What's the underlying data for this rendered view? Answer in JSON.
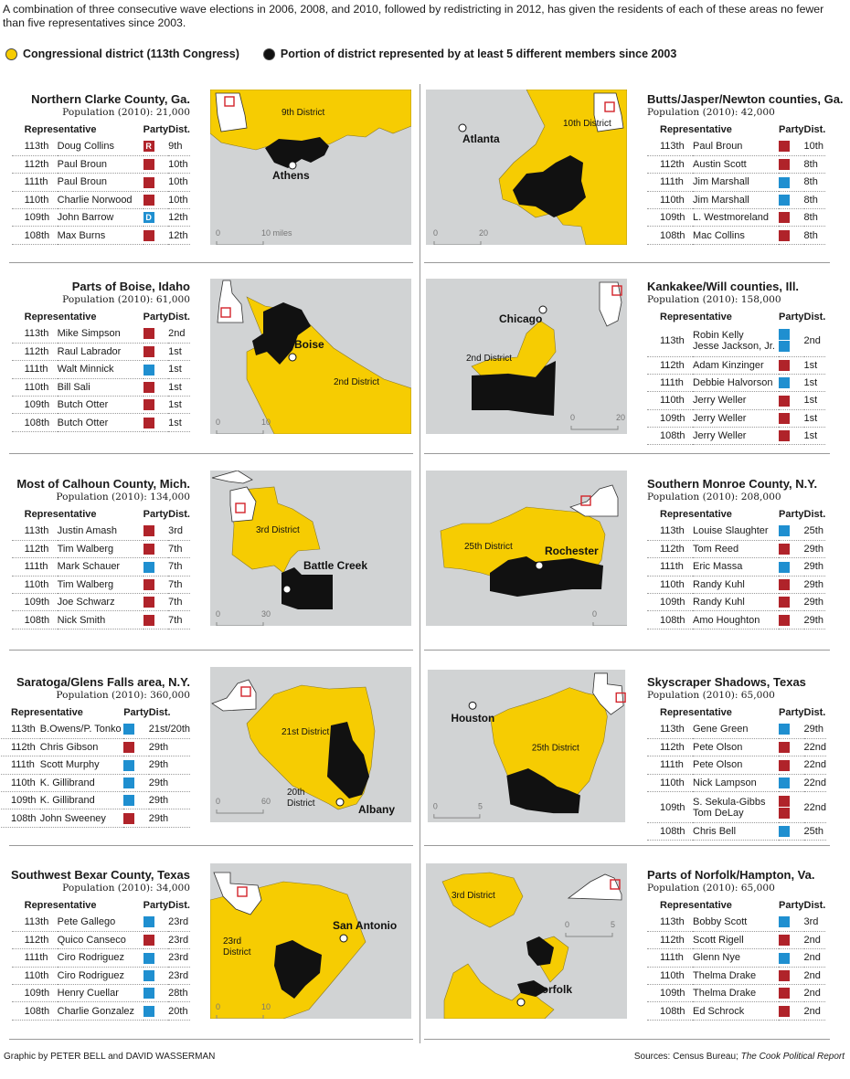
{
  "intro": "A combination of three consecutive wave elections in 2006, 2008, and 2010, followed by redistricting in 2012, has given the residents of each of these areas no fewer than five representatives since 2003.",
  "legend": {
    "district_label": "Congressional district (113th Congress)",
    "portion_label": "Portion of district represented by at least 5 different members since 2003",
    "district_color": "#f6cc02",
    "portion_color": "#111111"
  },
  "colors": {
    "republican": "#b0232a",
    "democrat": "#1f8fd0",
    "land": "#d1d3d4",
    "water": "#ffffff"
  },
  "table_headers": {
    "rep": "Representative",
    "party": "Party",
    "dist": "Dist."
  },
  "regions": [
    {
      "title": "Northern Clarke County, Ga.",
      "population": "Population (2010): 21,000",
      "rows": [
        {
          "congress": "113th",
          "name": "Doug Collins",
          "parties": [
            "R"
          ],
          "label": "R",
          "district": "9th"
        },
        {
          "congress": "112th",
          "name": "Paul Broun",
          "parties": [
            "R"
          ],
          "label": "",
          "district": "10th"
        },
        {
          "congress": "111th",
          "name": "Paul Broun",
          "parties": [
            "R"
          ],
          "label": "",
          "district": "10th"
        },
        {
          "congress": "110th",
          "name": "Charlie Norwood",
          "parties": [
            "R"
          ],
          "label": "",
          "district": "10th"
        },
        {
          "congress": "109th",
          "name": "John Barrow",
          "parties": [
            "D"
          ],
          "label": "D",
          "district": "12th"
        },
        {
          "congress": "108th",
          "name": "Max Burns",
          "parties": [
            "R"
          ],
          "label": "",
          "district": "12th"
        }
      ],
      "map": {
        "district": "9th District",
        "city": "Athens",
        "scale": [
          "0",
          "10 miles"
        ]
      }
    },
    {
      "title": "Butts/Jasper/Newton counties, Ga.",
      "population": "Population (2010): 42,000",
      "rows": [
        {
          "congress": "113th",
          "name": "Paul Broun",
          "parties": [
            "R"
          ],
          "label": "",
          "district": "10th"
        },
        {
          "congress": "112th",
          "name": "Austin Scott",
          "parties": [
            "R"
          ],
          "label": "",
          "district": "8th"
        },
        {
          "congress": "111th",
          "name": "Jim Marshall",
          "parties": [
            "D"
          ],
          "label": "",
          "district": "8th"
        },
        {
          "congress": "110th",
          "name": "Jim Marshall",
          "parties": [
            "D"
          ],
          "label": "",
          "district": "8th"
        },
        {
          "congress": "109th",
          "name": "L. Westmoreland",
          "parties": [
            "R"
          ],
          "label": "",
          "district": "8th"
        },
        {
          "congress": "108th",
          "name": "Mac Collins",
          "parties": [
            "R"
          ],
          "label": "",
          "district": "8th"
        }
      ],
      "map": {
        "district": "10th District",
        "city": "Atlanta",
        "scale": [
          "0",
          "20"
        ]
      }
    },
    {
      "title": "Parts of Boise, Idaho",
      "population": "Population (2010): 61,000",
      "rows": [
        {
          "congress": "113th",
          "name": "Mike Simpson",
          "parties": [
            "R"
          ],
          "label": "",
          "district": "2nd"
        },
        {
          "congress": "112th",
          "name": "Raul Labrador",
          "parties": [
            "R"
          ],
          "label": "",
          "district": "1st"
        },
        {
          "congress": "111th",
          "name": "Walt Minnick",
          "parties": [
            "D"
          ],
          "label": "",
          "district": "1st"
        },
        {
          "congress": "110th",
          "name": "Bill Sali",
          "parties": [
            "R"
          ],
          "label": "",
          "district": "1st"
        },
        {
          "congress": "109th",
          "name": "Butch Otter",
          "parties": [
            "R"
          ],
          "label": "",
          "district": "1st"
        },
        {
          "congress": "108th",
          "name": "Butch Otter",
          "parties": [
            "R"
          ],
          "label": "",
          "district": "1st"
        }
      ],
      "map": {
        "district": "2nd District",
        "city": "Boise",
        "scale": [
          "0",
          "10"
        ]
      }
    },
    {
      "title": "Kankakee/Will counties, Ill.",
      "population": "Population (2010): 158,000",
      "rows": [
        {
          "congress": "113th",
          "name": "Robin Kelly",
          "name2": "Jesse Jackson, Jr.",
          "parties": [
            "D",
            "D"
          ],
          "label": "",
          "district": "2nd"
        },
        {
          "congress": "112th",
          "name": "Adam Kinzinger",
          "parties": [
            "R"
          ],
          "label": "",
          "district": "1st"
        },
        {
          "congress": "111th",
          "name": "Debbie Halvorson",
          "parties": [
            "D"
          ],
          "label": "",
          "district": "1st"
        },
        {
          "congress": "110th",
          "name": "Jerry Weller",
          "parties": [
            "R"
          ],
          "label": "",
          "district": "1st"
        },
        {
          "congress": "109th",
          "name": "Jerry Weller",
          "parties": [
            "R"
          ],
          "label": "",
          "district": "1st"
        },
        {
          "congress": "108th",
          "name": "Jerry Weller",
          "parties": [
            "R"
          ],
          "label": "",
          "district": "1st"
        }
      ],
      "map": {
        "district": "2nd District",
        "city": "Chicago",
        "scale": [
          "0",
          "20"
        ]
      }
    },
    {
      "title": "Most of Calhoun County, Mich.",
      "population": "Population (2010): 134,000",
      "rows": [
        {
          "congress": "113th",
          "name": "Justin Amash",
          "parties": [
            "R"
          ],
          "label": "",
          "district": "3rd"
        },
        {
          "congress": "112th",
          "name": "Tim Walberg",
          "parties": [
            "R"
          ],
          "label": "",
          "district": "7th"
        },
        {
          "congress": "111th",
          "name": "Mark Schauer",
          "parties": [
            "D"
          ],
          "label": "",
          "district": "7th"
        },
        {
          "congress": "110th",
          "name": "Tim Walberg",
          "parties": [
            "R"
          ],
          "label": "",
          "district": "7th"
        },
        {
          "congress": "109th",
          "name": "Joe Schwarz",
          "parties": [
            "R"
          ],
          "label": "",
          "district": "7th"
        },
        {
          "congress": "108th",
          "name": "Nick Smith",
          "parties": [
            "R"
          ],
          "label": "",
          "district": "7th"
        }
      ],
      "map": {
        "district": "3rd District",
        "city": "Battle Creek",
        "scale": [
          "0",
          "30"
        ]
      }
    },
    {
      "title": "Southern Monroe County, N.Y.",
      "population": "Population (2010): 208,000",
      "rows": [
        {
          "congress": "113th",
          "name": "Louise Slaughter",
          "parties": [
            "D"
          ],
          "label": "",
          "district": "25th"
        },
        {
          "congress": "112th",
          "name": "Tom Reed",
          "parties": [
            "R"
          ],
          "label": "",
          "district": "29th"
        },
        {
          "congress": "111th",
          "name": "Eric Massa",
          "parties": [
            "D"
          ],
          "label": "",
          "district": "29th"
        },
        {
          "congress": "110th",
          "name": "Randy Kuhl",
          "parties": [
            "R"
          ],
          "label": "",
          "district": "29th"
        },
        {
          "congress": "109th",
          "name": "Randy Kuhl",
          "parties": [
            "R"
          ],
          "label": "",
          "district": "29th"
        },
        {
          "congress": "108th",
          "name": "Amo Houghton",
          "parties": [
            "R"
          ],
          "label": "",
          "district": "29th"
        }
      ],
      "map": {
        "district": "25th District",
        "city": "Rochester",
        "scale": [
          "0",
          "10"
        ]
      }
    },
    {
      "title": "Saratoga/Glens Falls area, N.Y.",
      "population": "Population (2010): 360,000",
      "rows": [
        {
          "congress": "113th",
          "name": "B.Owens/P. Tonko",
          "parties": [
            "D"
          ],
          "label": "",
          "district": "21st/20th"
        },
        {
          "congress": "112th",
          "name": "Chris Gibson",
          "parties": [
            "R"
          ],
          "label": "",
          "district": "29th"
        },
        {
          "congress": "111th",
          "name": "Scott Murphy",
          "parties": [
            "D"
          ],
          "label": "",
          "district": "29th"
        },
        {
          "congress": "110th",
          "name": "K. Gillibrand",
          "parties": [
            "D"
          ],
          "label": "",
          "district": "29th"
        },
        {
          "congress": "109th",
          "name": "K. Gillibrand",
          "parties": [
            "D"
          ],
          "label": "",
          "district": "29th"
        },
        {
          "congress": "108th",
          "name": "John Sweeney",
          "parties": [
            "R"
          ],
          "label": "",
          "district": "29th"
        }
      ],
      "map": {
        "district": "21st District",
        "district2": "20th",
        "district2b": "District",
        "city": "Albany",
        "scale": [
          "0",
          "60"
        ]
      }
    },
    {
      "title": "Skyscraper Shadows, Texas",
      "population": "Population (2010): 65,000",
      "rows": [
        {
          "congress": "113th",
          "name": "Gene Green",
          "parties": [
            "D"
          ],
          "label": "",
          "district": "29th"
        },
        {
          "congress": "112th",
          "name": "Pete Olson",
          "parties": [
            "R"
          ],
          "label": "",
          "district": "22nd"
        },
        {
          "congress": "111th",
          "name": "Pete Olson",
          "parties": [
            "R"
          ],
          "label": "",
          "district": "22nd"
        },
        {
          "congress": "110th",
          "name": "Nick Lampson",
          "parties": [
            "D"
          ],
          "label": "",
          "district": "22nd"
        },
        {
          "congress": "109th",
          "name": "S. Sekula-Gibbs",
          "name2": "Tom DeLay",
          "parties": [
            "R",
            "R"
          ],
          "label": "",
          "district": "22nd"
        },
        {
          "congress": "108th",
          "name": "Chris Bell",
          "parties": [
            "D"
          ],
          "label": "",
          "district": "25th"
        }
      ],
      "map": {
        "district": "25th District",
        "city": "Houston",
        "scale": [
          "0",
          "5"
        ]
      }
    },
    {
      "title": "Southwest Bexar County, Texas",
      "population": "Population (2010): 34,000",
      "rows": [
        {
          "congress": "113th",
          "name": "Pete Gallego",
          "parties": [
            "D"
          ],
          "label": "",
          "district": "23rd"
        },
        {
          "congress": "112th",
          "name": "Quico Canseco",
          "parties": [
            "R"
          ],
          "label": "",
          "district": "23rd"
        },
        {
          "congress": "111th",
          "name": "Ciro Rodriguez",
          "parties": [
            "D"
          ],
          "label": "",
          "district": "23rd"
        },
        {
          "congress": "110th",
          "name": "Ciro Rodriguez",
          "parties": [
            "D"
          ],
          "label": "",
          "district": "23rd"
        },
        {
          "congress": "109th",
          "name": "Henry Cuellar",
          "parties": [
            "D"
          ],
          "label": "",
          "district": "28th"
        },
        {
          "congress": "108th",
          "name": "Charlie Gonzalez",
          "parties": [
            "D"
          ],
          "label": "",
          "district": "20th"
        }
      ],
      "map": {
        "district": "23rd",
        "district_b": "District",
        "city": "San Antonio",
        "scale": [
          "0",
          "10"
        ]
      }
    },
    {
      "title": "Parts of Norfolk/Hampton, Va.",
      "population": "Population (2010): 65,000",
      "rows": [
        {
          "congress": "113th",
          "name": "Bobby Scott",
          "parties": [
            "D"
          ],
          "label": "",
          "district": "3rd"
        },
        {
          "congress": "112th",
          "name": "Scott Rigell",
          "parties": [
            "R"
          ],
          "label": "",
          "district": "2nd"
        },
        {
          "congress": "111th",
          "name": "Glenn Nye",
          "parties": [
            "D"
          ],
          "label": "",
          "district": "2nd"
        },
        {
          "congress": "110th",
          "name": "Thelma Drake",
          "parties": [
            "R"
          ],
          "label": "",
          "district": "2nd"
        },
        {
          "congress": "109th",
          "name": "Thelma Drake",
          "parties": [
            "R"
          ],
          "label": "",
          "district": "2nd"
        },
        {
          "congress": "108th",
          "name": "Ed Schrock",
          "parties": [
            "R"
          ],
          "label": "",
          "district": "2nd"
        }
      ],
      "map": {
        "district": "3rd District",
        "city": "Norfolk",
        "scale": [
          "0",
          "5"
        ]
      }
    }
  ],
  "footer": {
    "credit": "Graphic by PETER BELL and DAVID WASSERMAN",
    "sources_prefix": "Sources: Census Bureau; ",
    "sources_italic": "The Cook Political Report"
  }
}
